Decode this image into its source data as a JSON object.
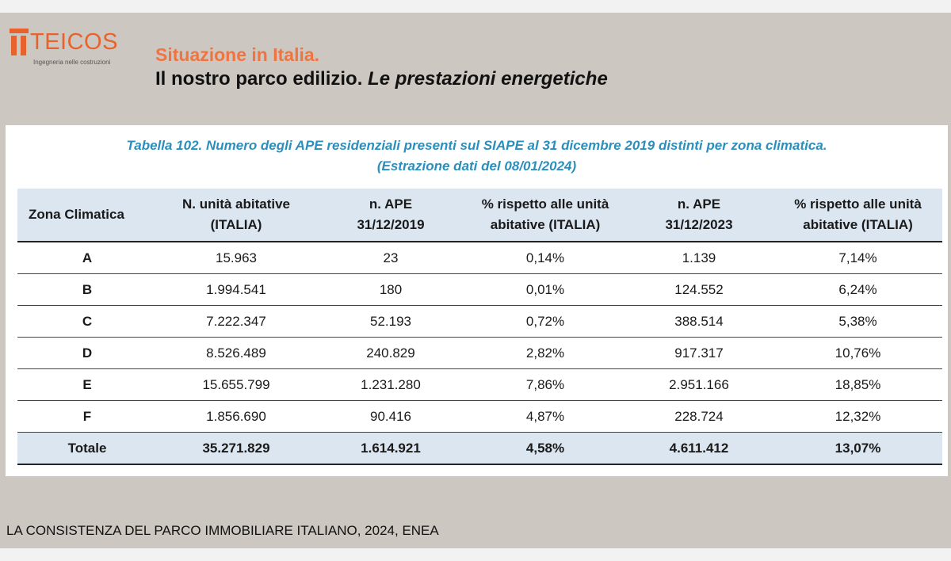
{
  "logo": {
    "name": "TEICOS",
    "tagline": "Ingegneria nelle costruzioni",
    "color": "#e8632c"
  },
  "header": {
    "title": "Situazione in Italia.",
    "subtitle_normal": "Il nostro parco edilizio. ",
    "subtitle_italic": "Le prestazioni energetiche"
  },
  "table": {
    "caption_line1": "Tabella 102. Numero degli APE residenziali presenti sul SIAPE al 31 dicembre 2019 distinti per zona climatica.",
    "caption_line2": "(Estrazione dati del 08/01/2024)",
    "headers": [
      [
        "Zona Climatica"
      ],
      [
        "N. unità abitative",
        "(ITALIA)"
      ],
      [
        "n. APE",
        "31/12/2019"
      ],
      [
        "% rispetto alle unità",
        "abitative (ITALIA)"
      ],
      [
        "n. APE",
        "31/12/2023"
      ],
      [
        "% rispetto alle unità",
        "abitative (ITALIA)"
      ]
    ],
    "rows": [
      [
        "A",
        "15.963",
        "23",
        "0,14%",
        "1.139",
        "7,14%"
      ],
      [
        "B",
        "1.994.541",
        "180",
        "0,01%",
        "124.552",
        "6,24%"
      ],
      [
        "C",
        "7.222.347",
        "52.193",
        "0,72%",
        "388.514",
        "5,38%"
      ],
      [
        "D",
        "8.526.489",
        "240.829",
        "2,82%",
        "917.317",
        "10,76%"
      ],
      [
        "E",
        "15.655.799",
        "1.231.280",
        "7,86%",
        "2.951.166",
        "18,85%"
      ],
      [
        "F",
        "1.856.690",
        "90.416",
        "4,87%",
        "228.724",
        "12,32%"
      ]
    ],
    "total": [
      "Totale",
      "35.271.829",
      "1.614.921",
      "4,58%",
      "4.611.412",
      "13,07%"
    ]
  },
  "source": "LA CONSISTENZA DEL PARCO IMMOBILIARE ITALIANO, 2024, ENEA"
}
